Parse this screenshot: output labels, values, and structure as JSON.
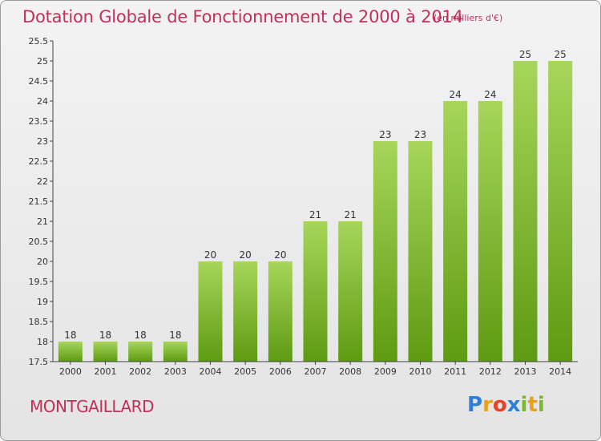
{
  "title": "Dotation Globale de Fonctionnement de 2000 à 2014",
  "unit_note": "(en milliers d'€)",
  "commune": "MONTGAILLARD",
  "logo": {
    "text": "Proxiti",
    "letters": [
      "P",
      "r",
      "o",
      "x",
      "i",
      "t",
      "i"
    ],
    "colors": [
      "#2e7fd6",
      "#e8a21a",
      "#e8402a",
      "#2e7fd6",
      "#7ab82e",
      "#e8a21a",
      "#7ab82e"
    ]
  },
  "colors": {
    "bar_top": "#a7d65a",
    "bar_bottom": "#5e9a12",
    "accent": "#c0305a"
  },
  "chart_data": {
    "type": "bar",
    "categories": [
      "2000",
      "2001",
      "2002",
      "2003",
      "2004",
      "2005",
      "2006",
      "2007",
      "2008",
      "2009",
      "2010",
      "2011",
      "2012",
      "2013",
      "2014"
    ],
    "values": [
      18,
      18,
      18,
      18,
      20,
      20,
      20,
      21,
      21,
      23,
      23,
      24,
      24,
      25,
      25
    ],
    "ylim": [
      17.5,
      25.5
    ],
    "yticks": [
      "17.5",
      "18",
      "18.5",
      "19",
      "19.5",
      "20",
      "20.5",
      "21",
      "21.5",
      "22",
      "22.5",
      "23",
      "23.5",
      "24",
      "24.5",
      "25",
      "25.5"
    ],
    "grid": false,
    "legend": "none"
  }
}
